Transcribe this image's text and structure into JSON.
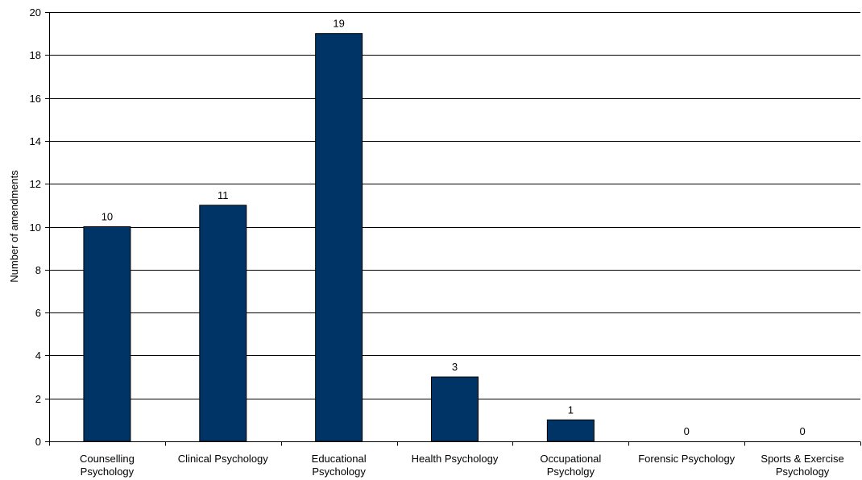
{
  "chart_data": {
    "type": "bar",
    "title": "",
    "xlabel": "",
    "ylabel": "Number of amendments",
    "ylim": [
      0,
      20
    ],
    "yticks": [
      0,
      2,
      4,
      6,
      8,
      10,
      12,
      14,
      16,
      18,
      20
    ],
    "grid": true,
    "legend": "none",
    "categories": [
      [
        "Counselling",
        "Psychology"
      ],
      [
        "Clinical Psychology"
      ],
      [
        "Educational",
        "Psychology"
      ],
      [
        "Health Psychology"
      ],
      [
        "Occupational",
        "Psycholgy"
      ],
      [
        "Forensic Psychology"
      ],
      [
        "Sports & Exercise",
        "Psychology"
      ]
    ],
    "values": [
      10,
      11,
      19,
      3,
      1,
      0,
      0
    ],
    "data_labels": [
      "10",
      "11",
      "19",
      "3",
      "1",
      "0",
      "0"
    ],
    "bar_color": "#003366"
  }
}
